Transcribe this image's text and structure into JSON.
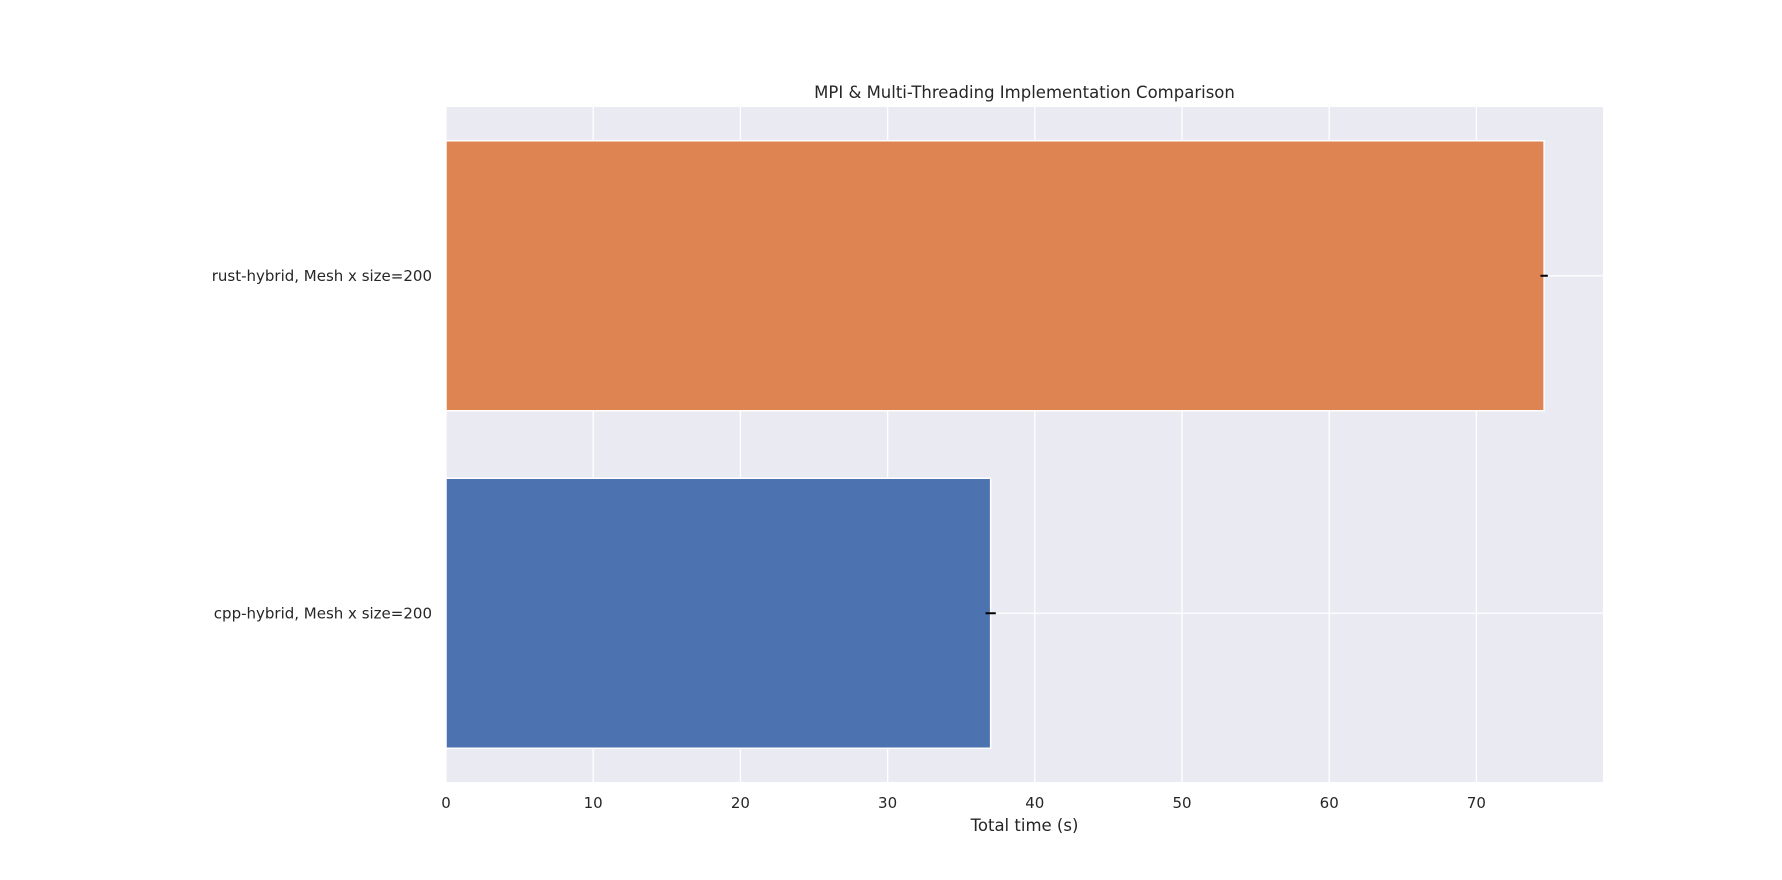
{
  "chart_data": {
    "type": "bar",
    "orientation": "horizontal",
    "title": "MPI & Multi-Threading Implementation Comparison",
    "xlabel": "Total time (s)",
    "ylabel": "",
    "categories": [
      "rust-hybrid, Mesh x size=200",
      "cpp-hybrid, Mesh x size=200"
    ],
    "values": [
      74.6,
      37.0
    ],
    "errors": [
      0.25,
      0.35
    ],
    "bar_colors": [
      "#dd8452",
      "#4c72b0"
    ],
    "xlim": [
      0,
      78.6
    ],
    "xticks": [
      0,
      10,
      20,
      30,
      40,
      50,
      60,
      70
    ],
    "xtick_labels": [
      "0",
      "10",
      "20",
      "30",
      "40",
      "50",
      "60",
      "70"
    ],
    "grid": true,
    "style": {
      "plot_background": "#eaeaf2",
      "grid_color": "#ffffff",
      "error_bar_color": "#000000"
    }
  }
}
